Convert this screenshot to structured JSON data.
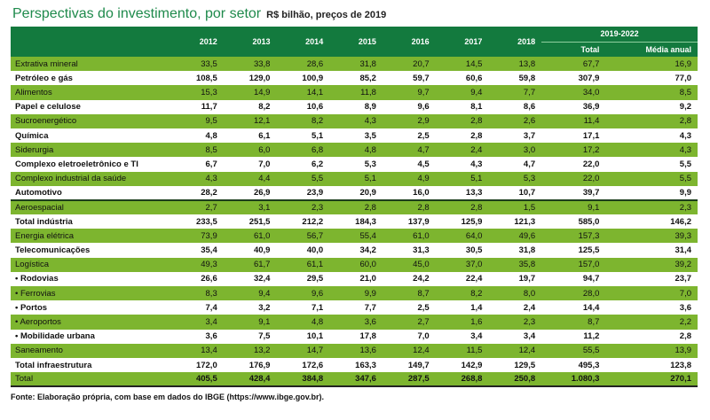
{
  "title": "Perspectivas do investimento, por setor",
  "subtitle": "R$ bilhão, preços de 2019",
  "columns": [
    "2012",
    "2013",
    "2014",
    "2015",
    "2016",
    "2017",
    "2018"
  ],
  "group_header": "2019-2022",
  "group_columns": [
    "Total",
    "Média anual"
  ],
  "rows": [
    {
      "label": "Extrativa mineral",
      "values": [
        "33,5",
        "33,8",
        "28,6",
        "31,8",
        "20,7",
        "14,5",
        "13,8",
        "67,7",
        "16,9"
      ],
      "style": "green"
    },
    {
      "label": "Petróleo e gás",
      "values": [
        "108,5",
        "129,0",
        "100,9",
        "85,2",
        "59,7",
        "60,6",
        "59,8",
        "307,9",
        "77,0"
      ],
      "style": "white"
    },
    {
      "label": "Alimentos",
      "values": [
        "15,3",
        "14,9",
        "14,1",
        "11,8",
        "9,7",
        "9,4",
        "7,7",
        "34,0",
        "8,5"
      ],
      "style": "green"
    },
    {
      "label": "Papel e celulose",
      "values": [
        "11,7",
        "8,2",
        "10,6",
        "8,9",
        "9,6",
        "8,1",
        "8,6",
        "36,9",
        "9,2"
      ],
      "style": "white"
    },
    {
      "label": "Sucroenergético",
      "values": [
        "9,5",
        "12,1",
        "8,2",
        "4,3",
        "2,9",
        "2,8",
        "2,6",
        "11,4",
        "2,8"
      ],
      "style": "green"
    },
    {
      "label": "Química",
      "values": [
        "4,8",
        "6,1",
        "5,1",
        "3,5",
        "2,5",
        "2,8",
        "3,7",
        "17,1",
        "4,3"
      ],
      "style": "white"
    },
    {
      "label": "Siderurgia",
      "values": [
        "8,5",
        "6,0",
        "6,8",
        "4,8",
        "4,7",
        "2,4",
        "3,0",
        "17,2",
        "4,3"
      ],
      "style": "green"
    },
    {
      "label": "Complexo eletroeletrônico e TI",
      "values": [
        "6,7",
        "7,0",
        "6,2",
        "5,3",
        "4,5",
        "4,3",
        "4,7",
        "22,0",
        "5,5"
      ],
      "style": "white"
    },
    {
      "label": "Complexo industrial da saúde",
      "values": [
        "4,3",
        "4,4",
        "5,5",
        "5,1",
        "4,9",
        "5,1",
        "5,3",
        "22,0",
        "5,5"
      ],
      "style": "green"
    },
    {
      "label": "Automotivo",
      "values": [
        "28,2",
        "26,9",
        "23,9",
        "20,9",
        "16,0",
        "13,3",
        "10,7",
        "39,7",
        "9,9"
      ],
      "style": "white"
    },
    {
      "label": "Aeroespacial",
      "values": [
        "2,7",
        "3,1",
        "2,3",
        "2,8",
        "2,8",
        "2,8",
        "1,5",
        "9,1",
        "2,3"
      ],
      "style": "green sep"
    },
    {
      "label": "Total indústria",
      "values": [
        "233,5",
        "251,5",
        "212,2",
        "184,3",
        "137,9",
        "125,9",
        "121,3",
        "585,0",
        "146,2"
      ],
      "style": "white total"
    },
    {
      "label": "Energia elétrica",
      "values": [
        "73,9",
        "61,0",
        "56,7",
        "55,4",
        "61,0",
        "64,0",
        "49,6",
        "157,3",
        "39,3"
      ],
      "style": "green"
    },
    {
      "label": "Telecomunicações",
      "values": [
        "35,4",
        "40,9",
        "40,0",
        "34,2",
        "31,3",
        "30,5",
        "31,8",
        "125,5",
        "31,4"
      ],
      "style": "white"
    },
    {
      "label": "Logística",
      "values": [
        "49,3",
        "61,7",
        "61,1",
        "60,0",
        "45,0",
        "37,0",
        "35,8",
        "157,0",
        "39,2"
      ],
      "style": "green"
    },
    {
      "label": "• Rodovias",
      "values": [
        "26,6",
        "32,4",
        "29,5",
        "21,0",
        "24,2",
        "22,4",
        "19,7",
        "94,7",
        "23,7"
      ],
      "style": "white"
    },
    {
      "label": "• Ferrovias",
      "values": [
        "8,3",
        "9,4",
        "9,6",
        "9,9",
        "8,7",
        "8,2",
        "8,0",
        "28,0",
        "7,0"
      ],
      "style": "green"
    },
    {
      "label": "• Portos",
      "values": [
        "7,4",
        "3,2",
        "7,1",
        "7,7",
        "2,5",
        "1,4",
        "2,4",
        "14,4",
        "3,6"
      ],
      "style": "white"
    },
    {
      "label": "• Aeroportos",
      "values": [
        "3,4",
        "9,1",
        "4,8",
        "3,6",
        "2,7",
        "1,6",
        "2,3",
        "8,7",
        "2,2"
      ],
      "style": "green"
    },
    {
      "label": "• Mobilidade urbana",
      "values": [
        "3,6",
        "7,5",
        "10,1",
        "17,8",
        "7,0",
        "3,4",
        "3,4",
        "11,2",
        "2,8"
      ],
      "style": "white"
    },
    {
      "label": "Saneamento",
      "values": [
        "13,4",
        "13,2",
        "14,7",
        "13,6",
        "12,4",
        "11,5",
        "12,4",
        "55,5",
        "13,9"
      ],
      "style": "green"
    },
    {
      "label": "Total infraestrutura",
      "values": [
        "172,0",
        "176,9",
        "172,6",
        "163,3",
        "149,7",
        "142,9",
        "129,5",
        "495,3",
        "123,8"
      ],
      "style": "white total"
    },
    {
      "label": "Total",
      "values": [
        "405,5",
        "428,4",
        "384,8",
        "347,6",
        "287,5",
        "268,8",
        "250,8",
        "1.080,3",
        "270,1"
      ],
      "style": "green total last"
    }
  ],
  "footer": "Fonte: Elaboração própria, com base em dados do IBGE (https://www.ibge.gov.br).",
  "colors": {
    "header": "#137a3e",
    "row_green": "#7db52f",
    "title": "#1f8a4c"
  }
}
